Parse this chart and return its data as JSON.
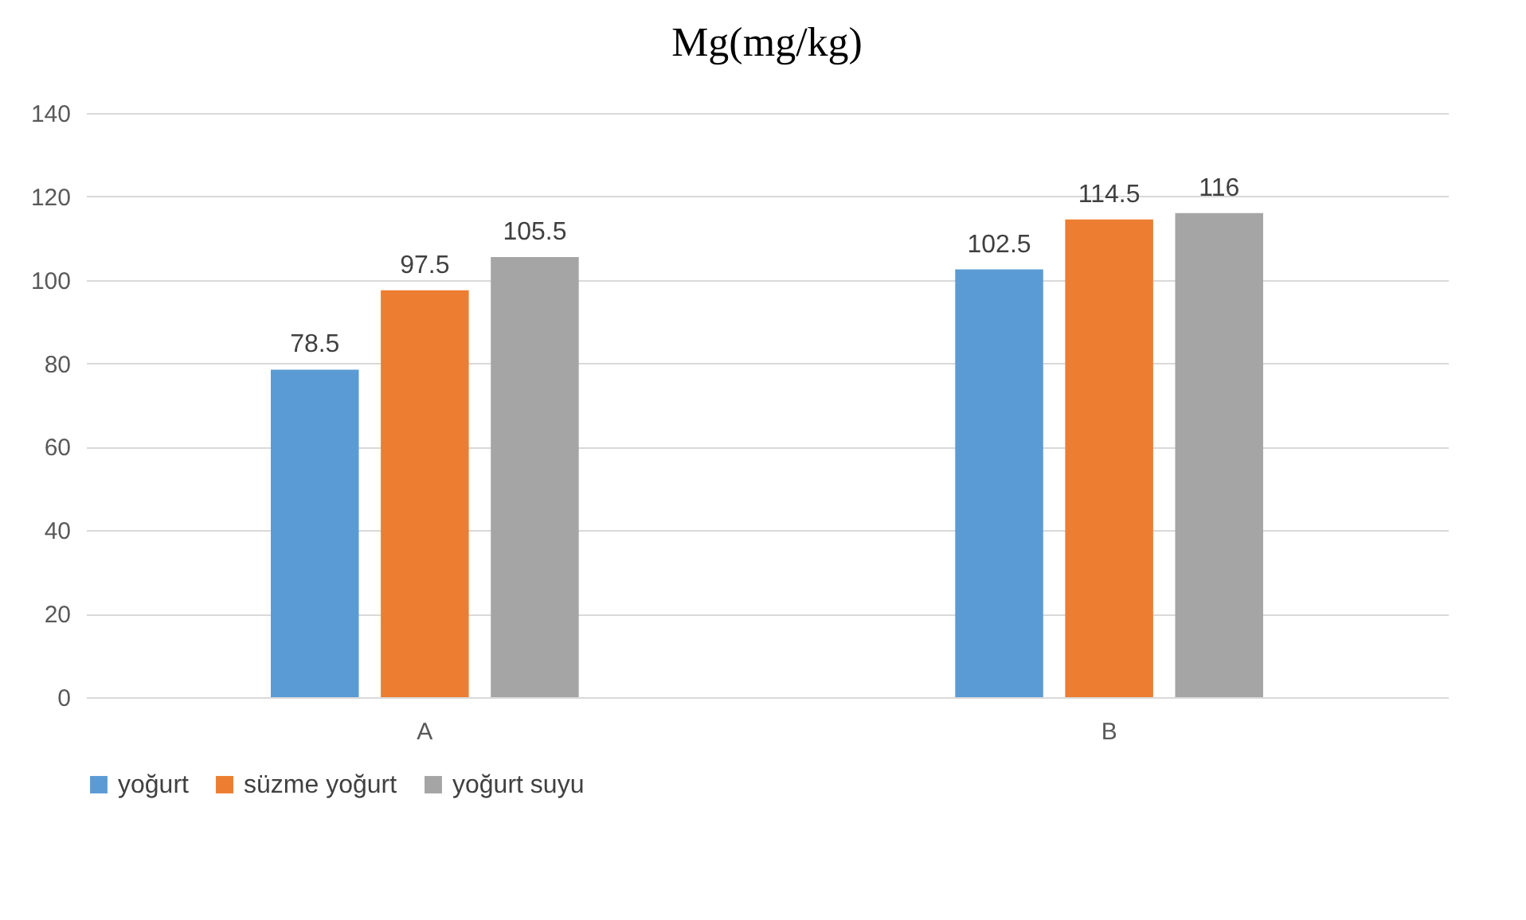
{
  "chart_data": {
    "type": "bar",
    "title": "Mg(mg/kg)",
    "categories": [
      "A",
      "B"
    ],
    "series": [
      {
        "name": "yoğurt",
        "color": "#5b9bd5",
        "values": [
          78.5,
          102.5
        ]
      },
      {
        "name": "süzme yoğurt",
        "color": "#ed7d31",
        "values": [
          97.5,
          114.5
        ]
      },
      {
        "name": "yoğurt suyu",
        "color": "#a5a5a5",
        "values": [
          105.5,
          116
        ]
      }
    ],
    "ylim": [
      0,
      140
    ],
    "yticks": [
      0,
      20,
      40,
      60,
      80,
      100,
      120,
      140
    ],
    "grid": "y",
    "legend": "bottom",
    "data_labels": true
  }
}
